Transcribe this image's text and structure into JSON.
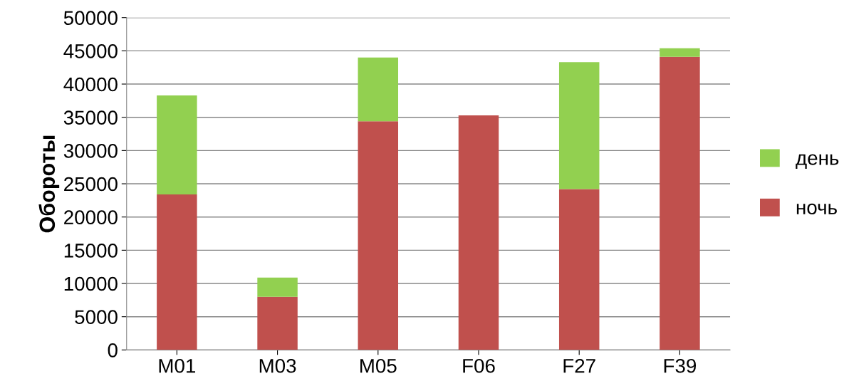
{
  "chart_data": {
    "type": "bar",
    "stacked": true,
    "ylabel": "Обороты",
    "categories": [
      "M01",
      "M03",
      "M05",
      "F06",
      "F27",
      "F39"
    ],
    "series": [
      {
        "name": "ночь",
        "color": "#c0504d",
        "values": [
          23400,
          8000,
          34400,
          35300,
          24200,
          44100
        ]
      },
      {
        "name": "день",
        "color": "#92d050",
        "values": [
          14900,
          2900,
          9600,
          0,
          19100,
          1300
        ]
      }
    ],
    "ylim": [
      0,
      50000
    ],
    "yticks": [
      0,
      5000,
      10000,
      15000,
      20000,
      25000,
      30000,
      35000,
      40000,
      45000,
      50000
    ],
    "grid": "y",
    "legend": "right"
  }
}
